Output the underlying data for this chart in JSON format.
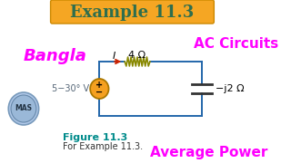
{
  "title": "Example 11.3",
  "title_color": "#2E6E4E",
  "title_bg_color": "#F5A623",
  "bangla_text": "Bangla",
  "bangla_color": "#FF00FF",
  "ac_circuits_text": "AC Circuits",
  "ac_circuits_color": "#FF00FF",
  "avg_power_text": "Average Power",
  "avg_power_color": "#FF00FF",
  "figure_label": "Figure 11.3",
  "figure_label_color": "#008B8B",
  "figure_sublabel": "For Example 11.3.",
  "figure_sublabel_color": "#333333",
  "voltage_label": "5−30° V",
  "resistor_label": "4 Ω",
  "capacitor_label": "−j2 Ω",
  "current_label": "I",
  "circuit_color": "#2266AA",
  "wire_color": "#2266AA",
  "background_color": "#FFFFFF",
  "resistor_color": "#888800",
  "capacitor_color": "#333333",
  "source_fill": "#F5A020",
  "source_edge": "#AA7700",
  "arrow_color": "#CC2200"
}
